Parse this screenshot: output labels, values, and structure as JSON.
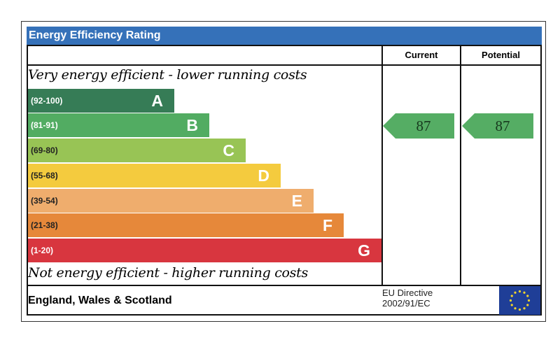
{
  "title": "Energy Efficiency Rating",
  "columns": {
    "current": "Current",
    "potential": "Potential"
  },
  "top_caption": "Very energy efficient - lower running costs",
  "bottom_caption": "Not energy efficient - higher running costs",
  "footer": {
    "region": "England, Wales & Scotland",
    "directive_line1": "EU Directive",
    "directive_line2": "2002/91/EC"
  },
  "chart_data": {
    "type": "bar",
    "title": "Energy Efficiency Rating",
    "bands": [
      {
        "range": "(92-100)",
        "letter": "A",
        "color": "#367c56"
      },
      {
        "range": "(81-91)",
        "letter": "B",
        "color": "#52ac62"
      },
      {
        "range": "(69-80)",
        "letter": "C",
        "color": "#98c455"
      },
      {
        "range": "(55-68)",
        "letter": "D",
        "color": "#f4cb3e"
      },
      {
        "range": "(39-54)",
        "letter": "E",
        "color": "#efad6d"
      },
      {
        "range": "(21-38)",
        "letter": "F",
        "color": "#e6883a"
      },
      {
        "range": "(1-20)",
        "letter": "G",
        "color": "#d8363f"
      }
    ],
    "current": {
      "value": "87",
      "band": "B"
    },
    "potential": {
      "value": "87",
      "band": "B"
    }
  }
}
